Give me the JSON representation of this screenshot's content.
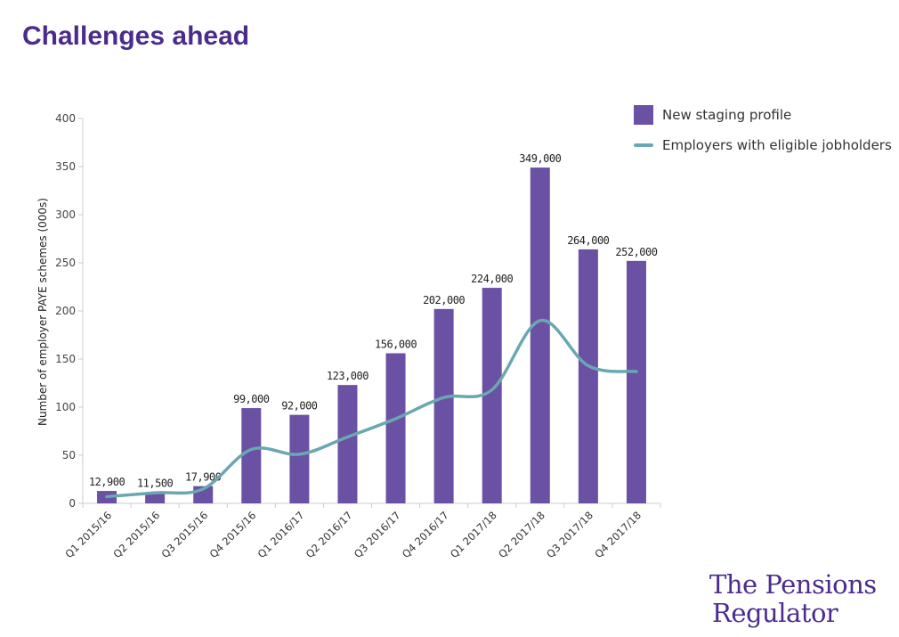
{
  "page": {
    "title": "Challenges ahead",
    "logo": {
      "line1": "The Pensions",
      "line2": "Regulator"
    },
    "colors": {
      "title": "#4b2c8c",
      "bar": "#6a51a3",
      "line": "#6aa7b0",
      "axis": "#cccccc",
      "text": "#333333"
    }
  },
  "chart_data": {
    "type": "bar",
    "title": "",
    "xlabel": "",
    "ylabel": "Number of employer PAYE schemes (000s)",
    "ylim": [
      0,
      400
    ],
    "yticks": [
      0,
      50,
      100,
      150,
      200,
      250,
      300,
      350,
      400
    ],
    "grid": false,
    "legend_position": "top-right",
    "categories": [
      "Q1 2015/16",
      "Q2 2015/16",
      "Q3 2015/16",
      "Q4 2015/16",
      "Q1 2016/17",
      "Q2 2016/17",
      "Q3 2016/17",
      "Q4 2016/17",
      "Q1 2017/18",
      "Q2 2017/18",
      "Q3 2017/18",
      "Q4 2017/18"
    ],
    "series": [
      {
        "name": "New staging profile",
        "type": "bar",
        "values": [
          12.9,
          11.5,
          17.9,
          99,
          92,
          123,
          156,
          202,
          224,
          349,
          264,
          252
        ],
        "labels": [
          "12,900",
          "11,500",
          "17,900",
          "99,000",
          "92,000",
          "123,000",
          "156,000",
          "202,000",
          "224,000",
          "349,000",
          "264,000",
          "252,000"
        ]
      },
      {
        "name": "Employers with eligible jobholders",
        "type": "line",
        "smooth": true,
        "values": [
          7,
          11,
          15,
          56,
          51,
          69,
          88,
          110,
          118,
          190,
          143,
          137
        ]
      }
    ]
  }
}
